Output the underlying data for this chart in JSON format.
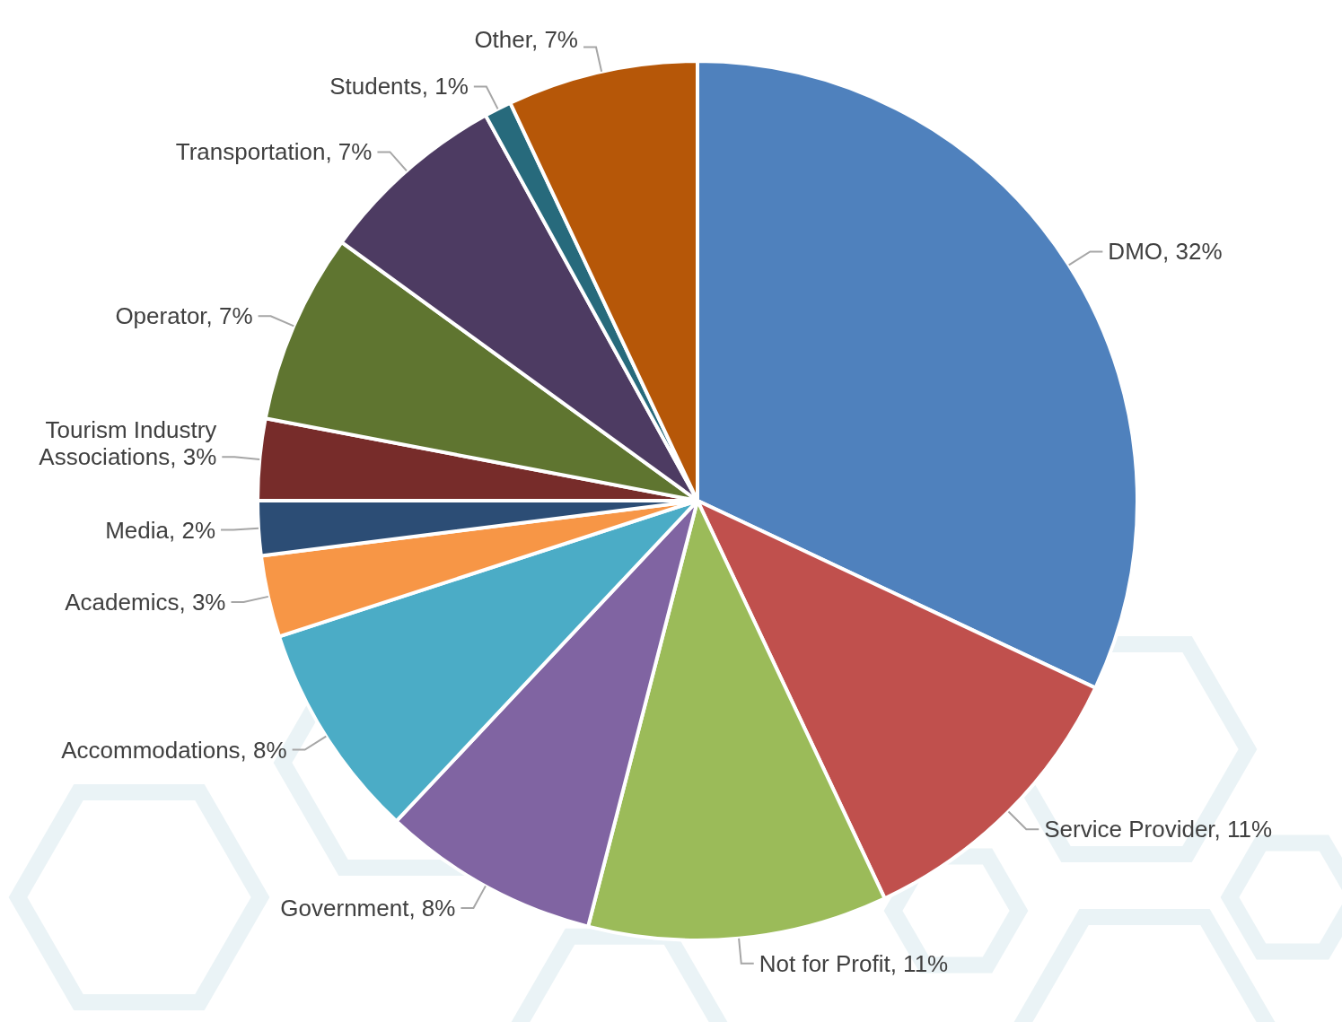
{
  "chart_data": {
    "type": "pie",
    "categories": [
      "DMO",
      "Service Provider",
      "Not for Profit",
      "Government",
      "Accommodations",
      "Academics",
      "Media",
      "Tourism Industry Associations",
      "Operator",
      "Transportation",
      "Students",
      "Other"
    ],
    "values": [
      32,
      11,
      11,
      8,
      8,
      3,
      2,
      3,
      7,
      7,
      1,
      7
    ],
    "value_labels": [
      "32%",
      "11%",
      "11%",
      "8%",
      "8%",
      "3%",
      "2%",
      "3%",
      "7%",
      "7%",
      "1%",
      "7%"
    ],
    "colors": [
      "#4f81bd",
      "#c0504d",
      "#9bbb59",
      "#8064a2",
      "#4bacc6",
      "#f79646",
      "#2c4d75",
      "#772c2a",
      "#5f7530",
      "#4d3b62",
      "#276a7c",
      "#b65708"
    ]
  }
}
